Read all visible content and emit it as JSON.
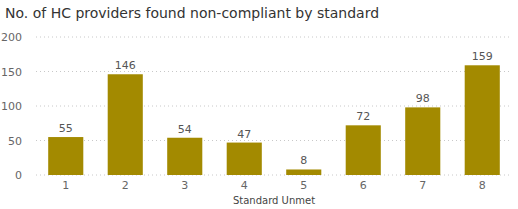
{
  "chart_data": {
    "type": "bar",
    "title": "No. of HC providers found non-compliant by standard",
    "x_label": "Standard Unmet",
    "categories": [
      "1",
      "2",
      "3",
      "4",
      "5",
      "6",
      "7",
      "8"
    ],
    "values": [
      55,
      146,
      54,
      47,
      8,
      72,
      98,
      159
    ],
    "color": "#a38a00",
    "ylim": [
      0,
      200
    ],
    "yticks": [
      0,
      50,
      100,
      150,
      200
    ],
    "grid": true,
    "data_labels": true
  }
}
